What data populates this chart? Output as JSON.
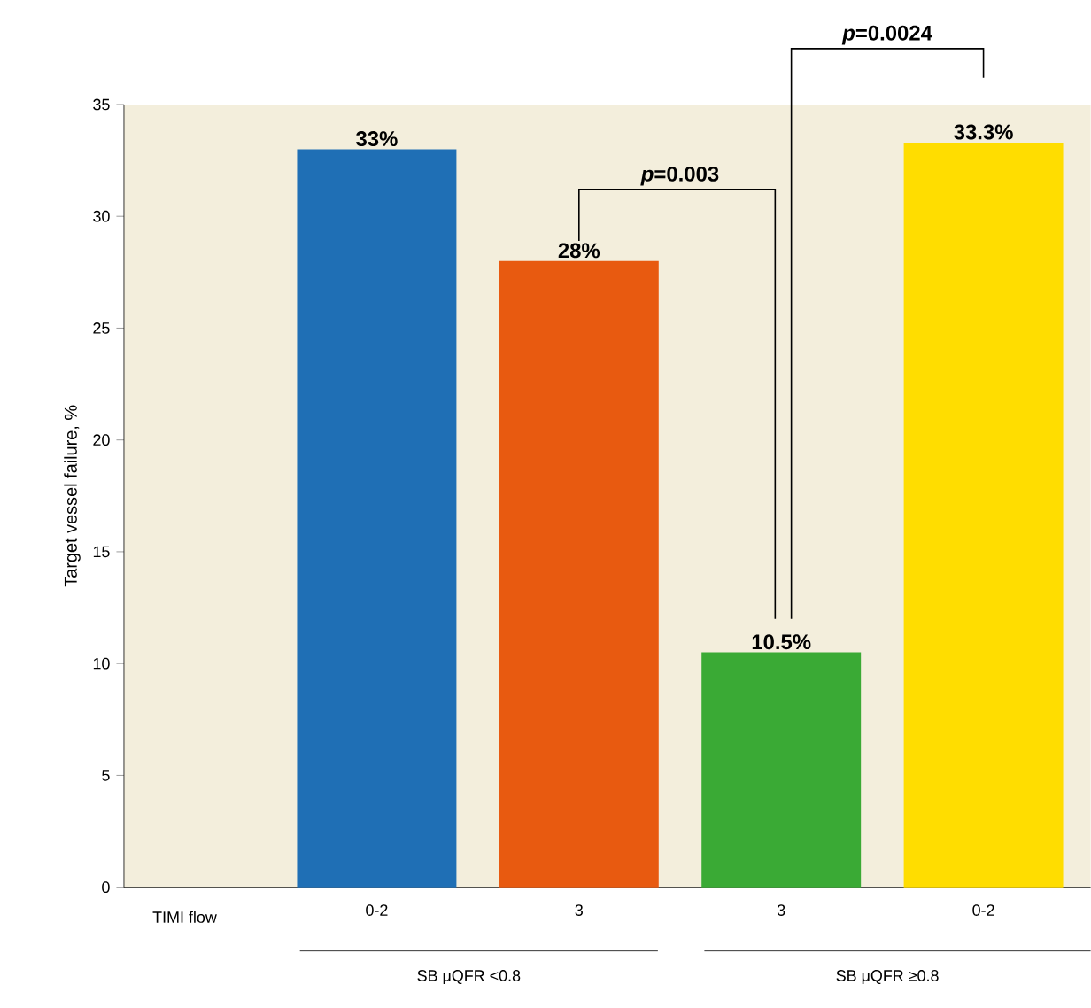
{
  "chart_data": {
    "type": "bar",
    "ylabel": "Target vessel failure, %",
    "xlabel": "TIMI flow",
    "categories": [
      "0-2",
      "3",
      "3",
      "0-2"
    ],
    "values": [
      33,
      28,
      10.5,
      33.3
    ],
    "value_labels": [
      "33%",
      "28%",
      "10.5%",
      "33.3%"
    ],
    "colors": [
      "#1f6fb5",
      "#e85a10",
      "#3aaa35",
      "#ffdd00"
    ],
    "ylim": [
      0,
      35
    ],
    "yticks": [
      0,
      5,
      10,
      15,
      20,
      25,
      30,
      35
    ],
    "annotations": [
      "*p*=0.003",
      "*p*=0.0024",
      "SB μQFR <0.8",
      "SB μQFR ≥0.8"
    ]
  }
}
